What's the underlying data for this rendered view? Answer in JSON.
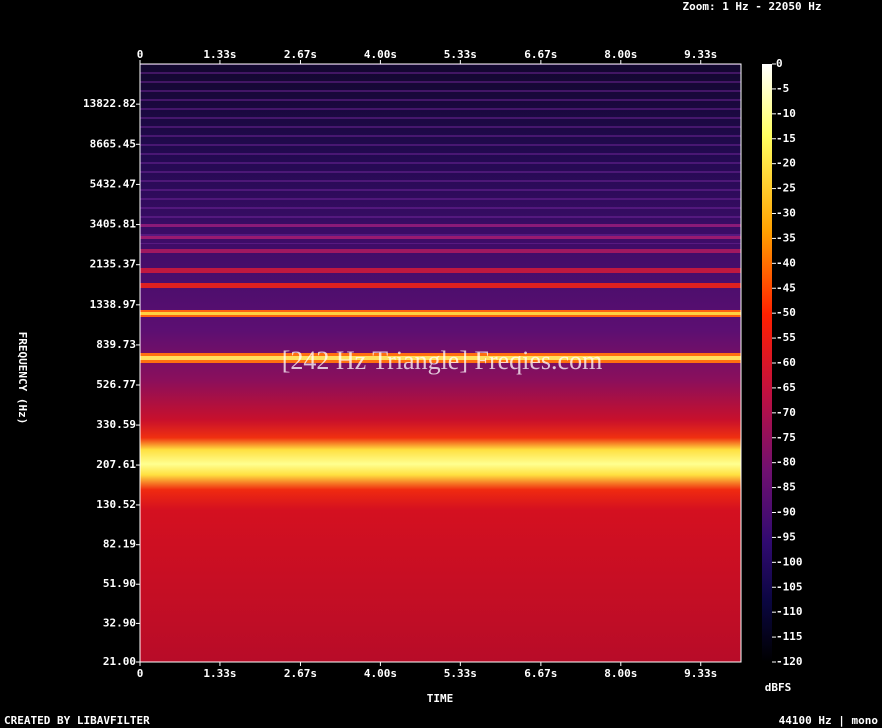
{
  "header": {
    "zoom": "Zoom: 1 Hz - 22050 Hz"
  },
  "chart_data": {
    "type": "spectrogram",
    "watermark": "[242 Hz Triangle] Freqies.com",
    "x_label": "TIME",
    "y_label": "FREQUENCY (Hz)",
    "xlim": [
      0,
      10
    ],
    "xticks": [
      0,
      {
        "value": 1.33,
        "label": "1.33s"
      },
      {
        "value": 2.67,
        "label": "2.67s"
      },
      {
        "value": 4,
        "label": "4.00s"
      },
      {
        "value": 5.33,
        "label": "5.33s"
      },
      {
        "value": 6.67,
        "label": "6.67s"
      },
      {
        "value": 8,
        "label": "8.00s"
      },
      {
        "value": 9.33,
        "label": "9.33s"
      }
    ],
    "ylim": [
      21,
      22050
    ],
    "y_scale": "log",
    "yticks": [
      {
        "value": 21,
        "label": "21.00"
      },
      {
        "value": 32.9,
        "label": "32.90"
      },
      {
        "value": 51.9,
        "label": "51.90"
      },
      82.19,
      130.52,
      207.61,
      330.59,
      526.77,
      839.73,
      1338.97,
      2135.37,
      3405.81,
      5432.47,
      8665.45,
      13822.82
    ],
    "colorbar": {
      "label": "dBFS",
      "lim": [
        -120,
        0
      ],
      "ticks": [
        0,
        -5,
        -10,
        -15,
        -20,
        -25,
        -30,
        -35,
        -40,
        -45,
        -50,
        -55,
        -60,
        -65,
        -70,
        -75,
        -80,
        -85,
        -90,
        -95,
        -100,
        -105,
        -110,
        -115,
        -120
      ]
    }
  },
  "footer": {
    "left": "CREATED BY LIBAVFILTER",
    "right": "44100 Hz | mono"
  }
}
